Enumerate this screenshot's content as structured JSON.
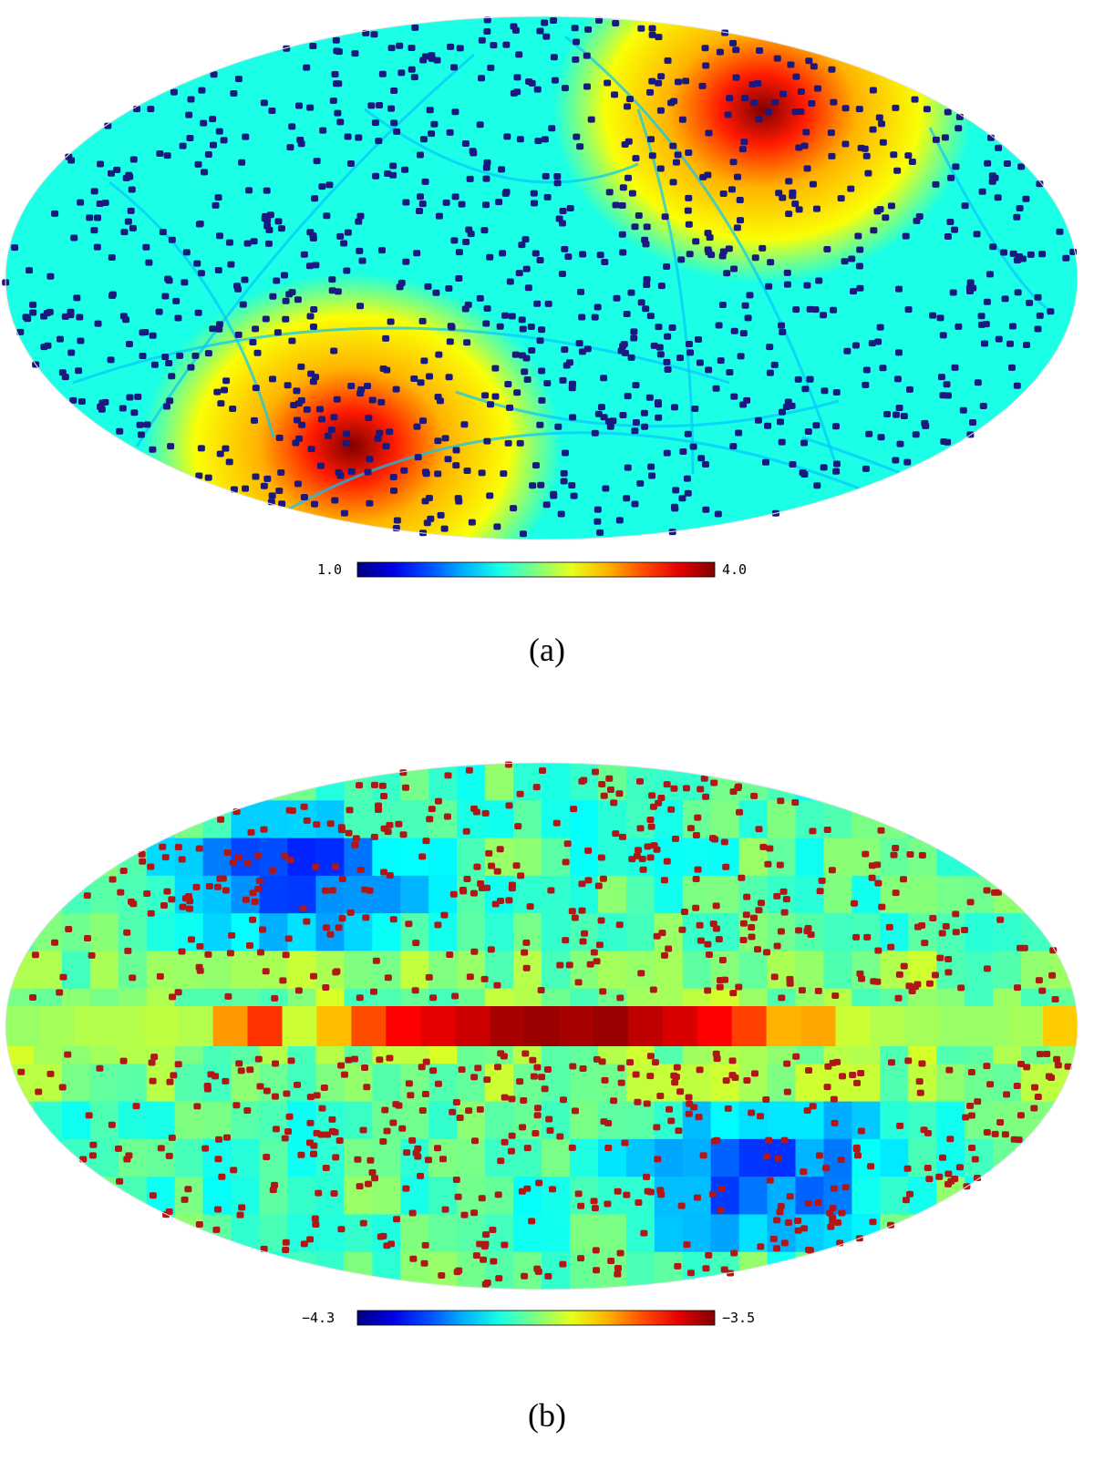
{
  "chart_data": [
    {
      "type": "heatmap",
      "projection": "mollweide",
      "panel_label": "(a)",
      "colormap": "jet",
      "colorbar": {
        "min_label": "1.0",
        "max_label": "4.0",
        "min": 1.0,
        "max": 4.0
      },
      "marker_color": "#1a1a7e",
      "hotspots": [
        {
          "lon": -97,
          "lat": 40,
          "value": 4.0
        },
        {
          "lon": 83,
          "lat": -40,
          "value": 4.0
        }
      ],
      "background_value": 2.2
    },
    {
      "type": "heatmap",
      "projection": "mollweide",
      "panel_label": "(b)",
      "colormap": "jet",
      "colorbar": {
        "min_label": "−4.3",
        "max_label": "−3.5",
        "min": -4.3,
        "max": -3.5
      },
      "marker_color": "#b01818",
      "band_values": [
        -3.88,
        -3.87,
        -3.86,
        -3.86,
        -3.85,
        -3.86,
        -3.72,
        -3.64,
        -3.84,
        -3.75,
        -3.66,
        -3.6,
        -3.58,
        -3.56,
        -3.53,
        -3.52,
        -3.53,
        -3.52,
        -3.55,
        -3.57,
        -3.6,
        -3.65,
        -3.74,
        -3.73,
        -3.84,
        -3.86,
        -3.87,
        -3.88,
        -3.88,
        -3.87,
        -3.76
      ],
      "background_value": -4.0
    }
  ]
}
